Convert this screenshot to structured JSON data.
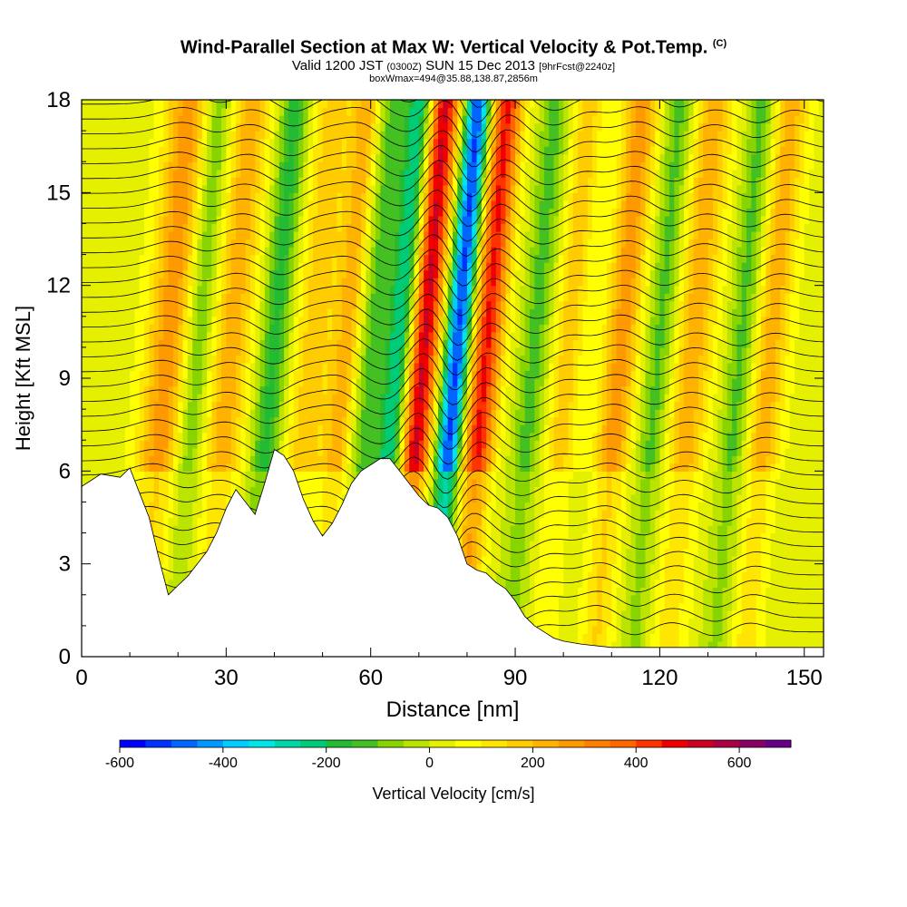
{
  "header": {
    "title": "Wind-Parallel Section at Max W: Vertical Velocity & Pot.Temp.",
    "title_mark": "(C)",
    "valid_main": "Valid 1200 JST",
    "valid_utc": "(0300Z)",
    "valid_date": "SUN 15 Dec 2013",
    "fcst": "[9hrFcst@2240z]",
    "box_info": "boxWmax=494@35.88,138.87,2856m"
  },
  "chart_data": {
    "type": "heatmap",
    "xlabel": "Distance [nm]",
    "ylabel": "Height [Kft MSL]",
    "xlim": [
      0,
      154
    ],
    "ylim": [
      0,
      18
    ],
    "x_ticks": [
      0,
      30,
      60,
      90,
      120,
      150
    ],
    "y_ticks": [
      0,
      3,
      6,
      9,
      12,
      15,
      18
    ],
    "colorbar": {
      "label": "Vertical Velocity [cm/s]",
      "min": -600,
      "max": 700,
      "step": 50,
      "tick_values": [
        -600,
        -400,
        -200,
        0,
        200,
        400,
        600
      ],
      "colors": [
        "#0000ff",
        "#0033ff",
        "#0066ff",
        "#0099ff",
        "#00ccff",
        "#00e5e5",
        "#00d6a8",
        "#00cc77",
        "#22bb33",
        "#44c022",
        "#88d400",
        "#bbe400",
        "#e5f000",
        "#ffff00",
        "#ffe600",
        "#ffcc00",
        "#ffb200",
        "#ff9900",
        "#ff8000",
        "#ff6600",
        "#ff3300",
        "#ee0000",
        "#cc0022",
        "#aa0044",
        "#880066",
        "#660088"
      ]
    },
    "vertical_velocity_bands": [
      {
        "x": 18,
        "w": 4.5,
        "value": 250
      },
      {
        "x": 24,
        "w": 3,
        "value": -150
      },
      {
        "x": 31,
        "w": 4,
        "value": 200
      },
      {
        "x": 40,
        "w": 3,
        "value": -200
      },
      {
        "x": 48,
        "w": 4,
        "value": 150
      },
      {
        "x": 55,
        "w": 3,
        "value": 200
      },
      {
        "x": 60,
        "w": 3,
        "value": -150
      },
      {
        "x": 66,
        "w": 3,
        "value": -300
      },
      {
        "x": 71,
        "w": 3.2,
        "value": 494
      },
      {
        "x": 78,
        "w": 2.6,
        "value": -550
      },
      {
        "x": 84,
        "w": 3.2,
        "value": 430
      },
      {
        "x": 94,
        "w": 3,
        "value": -150
      },
      {
        "x": 101,
        "w": 3,
        "value": 150
      },
      {
        "x": 112,
        "w": 3.5,
        "value": 250
      },
      {
        "x": 120,
        "w": 3,
        "value": -150
      },
      {
        "x": 127,
        "w": 4,
        "value": 200
      },
      {
        "x": 137,
        "w": 3,
        "value": -150
      },
      {
        "x": 143,
        "w": 3.5,
        "value": 200
      }
    ],
    "terrain": [
      [
        0,
        5.5
      ],
      [
        4,
        5.9
      ],
      [
        8,
        5.8
      ],
      [
        10,
        6.1
      ],
      [
        12,
        5.3
      ],
      [
        14,
        4.5
      ],
      [
        16,
        3.2
      ],
      [
        18,
        2.0
      ],
      [
        20,
        2.3
      ],
      [
        22,
        2.6
      ],
      [
        24,
        3.0
      ],
      [
        26,
        3.4
      ],
      [
        28,
        4.0
      ],
      [
        30,
        4.8
      ],
      [
        32,
        5.4
      ],
      [
        34,
        5.0
      ],
      [
        36,
        4.6
      ],
      [
        38,
        5.6
      ],
      [
        40,
        6.7
      ],
      [
        42,
        6.5
      ],
      [
        44,
        6.0
      ],
      [
        46,
        5.1
      ],
      [
        48,
        4.4
      ],
      [
        50,
        3.9
      ],
      [
        52,
        4.3
      ],
      [
        54,
        4.9
      ],
      [
        56,
        5.6
      ],
      [
        58,
        6.0
      ],
      [
        60,
        6.2
      ],
      [
        62,
        6.4
      ],
      [
        64,
        6.4
      ],
      [
        66,
        6.0
      ],
      [
        68,
        5.6
      ],
      [
        70,
        5.2
      ],
      [
        72,
        4.9
      ],
      [
        74,
        4.8
      ],
      [
        76,
        4.5
      ],
      [
        78,
        3.9
      ],
      [
        80,
        3.0
      ],
      [
        82,
        2.8
      ],
      [
        84,
        2.7
      ],
      [
        86,
        2.4
      ],
      [
        88,
        2.2
      ],
      [
        90,
        1.8
      ],
      [
        92,
        1.3
      ],
      [
        94,
        1.0
      ],
      [
        96,
        0.8
      ],
      [
        98,
        0.6
      ],
      [
        100,
        0.5
      ],
      [
        104,
        0.4
      ],
      [
        110,
        0.3
      ],
      [
        154,
        0.3
      ]
    ],
    "pot_temp_contour_levels": 38
  }
}
